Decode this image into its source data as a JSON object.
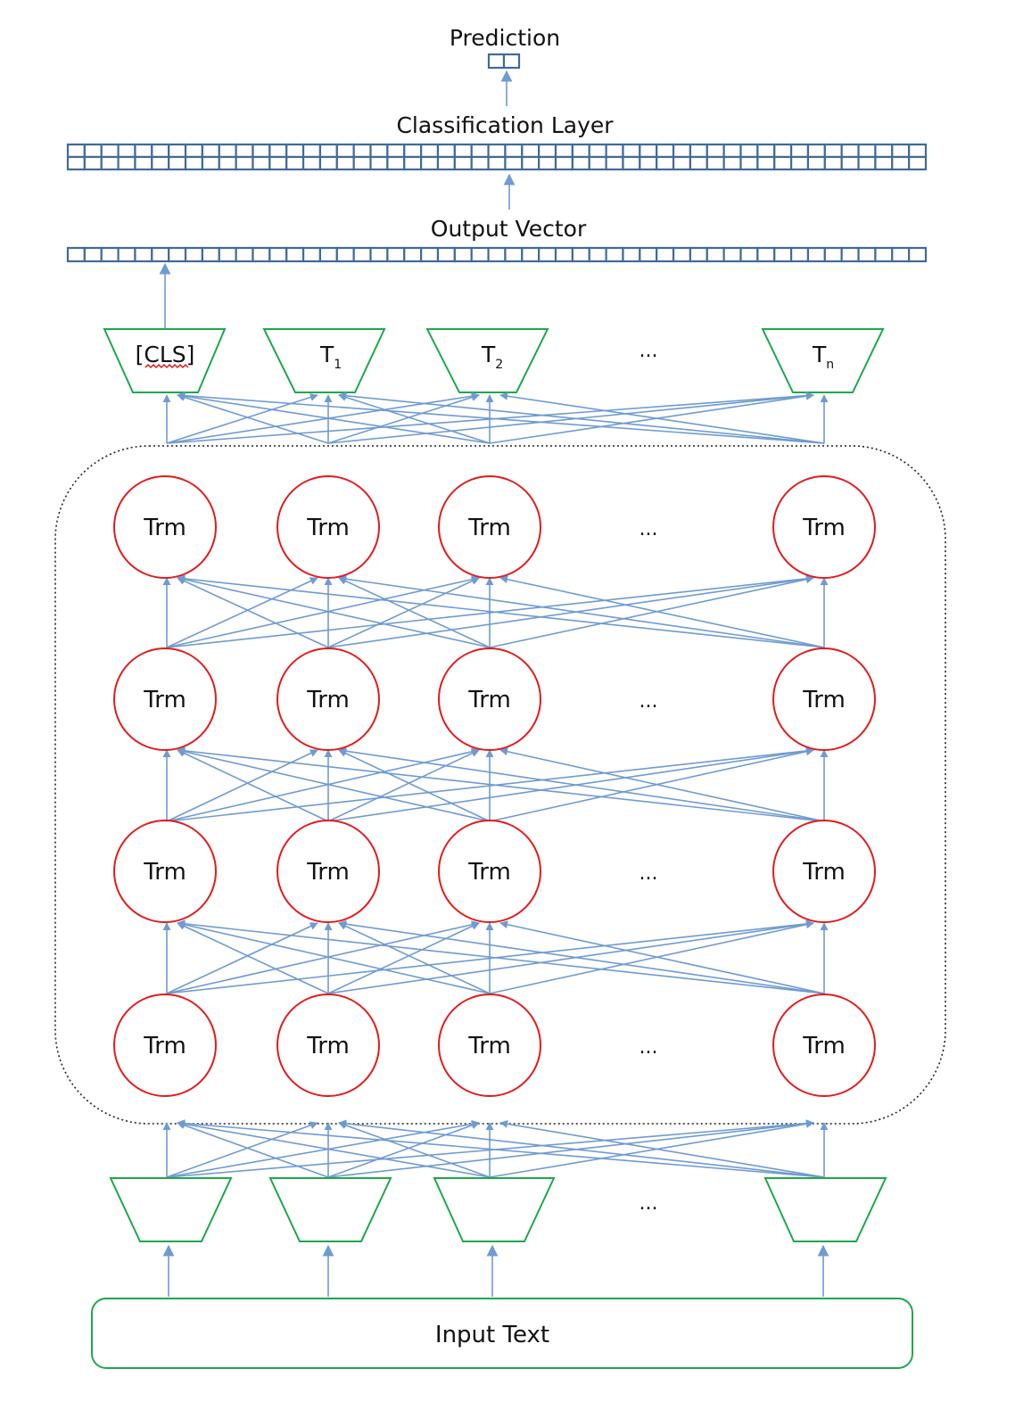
{
  "labels": {
    "prediction": "Prediction",
    "classification_layer": "Classification Layer",
    "output_vector": "Output Vector",
    "input_text": "Input Text",
    "ellipsis": "..."
  },
  "output_tokens": {
    "cls": "[CLS]",
    "t1": {
      "base": "T",
      "sub": "1"
    },
    "t2": {
      "base": "T",
      "sub": "2"
    },
    "tn": {
      "base": "T",
      "sub": "n"
    }
  },
  "transformer_block_label": "Trm",
  "transformer_layers": 4,
  "columns_shown": 4,
  "vector_cells": {
    "prediction": 2,
    "classification_rows": 2,
    "classification_cols": 51,
    "output_vector": 51
  },
  "colors": {
    "arrow": "#6f9bd1",
    "trm_circle": "#e31b1b",
    "trapezoid": "#1ea84a",
    "vector_cell": "#3f6b9a",
    "dotted_border": "#222222",
    "squiggle": "#e31b1b"
  }
}
